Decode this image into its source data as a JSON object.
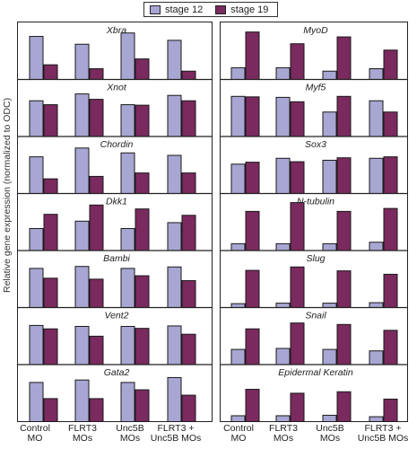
{
  "legend": {
    "items": [
      {
        "label": "stage 12",
        "color": "#a8a6d2"
      },
      {
        "label": "stage 19",
        "color": "#7a2a5e"
      }
    ]
  },
  "ylabel": "Relative gene expression (normalized to ODC)",
  "xlabels": [
    {
      "line1": "Control",
      "line2": "MO"
    },
    {
      "line1": "FLRT3",
      "line2": "MOs"
    },
    {
      "line1": "Unc5B",
      "line2": "MOs"
    },
    {
      "line1": "FLRT3 +",
      "line2": "Unc5B MOs"
    }
  ],
  "chart_data": {
    "type": "bar",
    "categories": [
      "Control MO",
      "FLRT3 MOs",
      "Unc5B MOs",
      "FLRT3 + Unc5B MOs"
    ],
    "series": [
      {
        "name": "stage 12",
        "color": "#a8a6d2"
      },
      {
        "name": "stage 19",
        "color": "#7a2a5e"
      }
    ],
    "panels": [
      {
        "gene": "Xbra",
        "column": "left",
        "s12": [
          0.88,
          0.72,
          0.95,
          0.8
        ],
        "s19": [
          0.3,
          0.22,
          0.42,
          0.17
        ]
      },
      {
        "gene": "Xnot",
        "column": "left",
        "s12": [
          0.73,
          0.87,
          0.65,
          0.84
        ],
        "s19": [
          0.65,
          0.76,
          0.64,
          0.73
        ]
      },
      {
        "gene": "Chordin",
        "column": "left",
        "s12": [
          0.75,
          0.93,
          0.83,
          0.78
        ],
        "s19": [
          0.3,
          0.35,
          0.42,
          0.42
        ]
      },
      {
        "gene": "Dkk1",
        "column": "left",
        "s12": [
          0.45,
          0.6,
          0.45,
          0.57
        ],
        "s19": [
          0.74,
          0.93,
          0.85,
          0.72
        ]
      },
      {
        "gene": "Bambi",
        "column": "left",
        "s12": [
          0.8,
          0.84,
          0.8,
          0.83
        ],
        "s19": [
          0.6,
          0.58,
          0.65,
          0.55
        ]
      },
      {
        "gene": "Vent2",
        "column": "left",
        "s12": [
          0.8,
          0.78,
          0.78,
          0.79
        ],
        "s19": [
          0.73,
          0.58,
          0.74,
          0.62
        ]
      },
      {
        "gene": "Gata2",
        "column": "left",
        "s12": [
          0.8,
          0.85,
          0.8,
          0.9
        ],
        "s19": [
          0.47,
          0.47,
          0.65,
          0.54
        ]
      },
      {
        "gene": "MyoD",
        "column": "right",
        "s12": [
          0.24,
          0.24,
          0.17,
          0.22
        ],
        "s19": [
          0.97,
          0.73,
          0.87,
          0.6
        ]
      },
      {
        "gene": "Myf5",
        "column": "right",
        "s12": [
          0.82,
          0.8,
          0.5,
          0.73
        ],
        "s19": [
          0.81,
          0.71,
          0.82,
          0.5
        ]
      },
      {
        "gene": "Sox3",
        "column": "right",
        "s12": [
          0.6,
          0.72,
          0.68,
          0.72
        ],
        "s19": [
          0.64,
          0.65,
          0.73,
          0.75
        ]
      },
      {
        "gene": "N-tubulin",
        "column": "right",
        "s12": [
          0.14,
          0.14,
          0.14,
          0.17
        ],
        "s19": [
          0.8,
          0.98,
          0.8,
          0.86
        ]
      },
      {
        "gene": "Slug",
        "column": "right",
        "s12": [
          0.08,
          0.09,
          0.09,
          0.1
        ],
        "s19": [
          0.76,
          0.83,
          0.75,
          0.68
        ]
      },
      {
        "gene": "Snail",
        "column": "right",
        "s12": [
          0.31,
          0.33,
          0.31,
          0.28
        ],
        "s19": [
          0.73,
          0.85,
          0.82,
          0.7
        ]
      },
      {
        "gene": "Epidermal Keratin",
        "column": "right",
        "s12": [
          0.12,
          0.12,
          0.13,
          0.1
        ],
        "s19": [
          0.66,
          0.58,
          0.61,
          0.46
        ]
      }
    ]
  }
}
